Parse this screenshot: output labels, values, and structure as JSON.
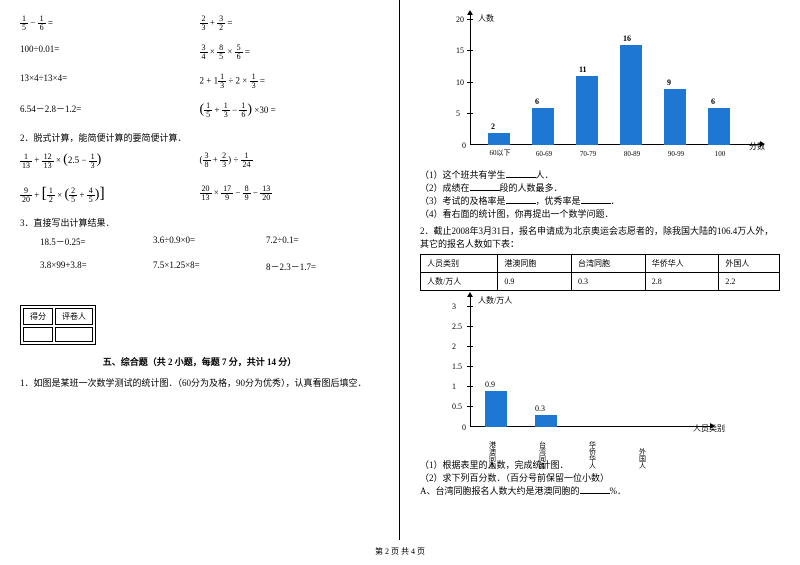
{
  "left": {
    "eq1a": "=",
    "eq1b": "=",
    "eq2a": "100÷0.01=",
    "eq3a": "13×4÷13×4=",
    "eq4a": "6.54－2.8－1.2=",
    "eq_paren": "×30 =",
    "item2": "2．脱式计算，能简便计算的要简便计算．",
    "item3": "3．直接写出计算结果．",
    "calc1": "18.5－0.25=",
    "calc2": "3.6÷0.9×0=",
    "calc3": "7.2÷0.1=",
    "calc4": "3.8×99+3.8=",
    "calc5": "7.5×1.25×8=",
    "calc6": "8－2.3－1.7=",
    "score1": "得分",
    "score2": "评卷人",
    "section5": "五、综合题（共 2 小题，每题 7 分，共计 14 分）",
    "q1": "1．如图是某班一次数学测试的统计图．（60分为及格，90分为优秀），认真看图后填空．"
  },
  "right": {
    "chart1": {
      "ylabel": "人数",
      "xlabel": "分数",
      "cats": [
        "60以下",
        "60-69",
        "70-79",
        "80-89",
        "90-99",
        "100"
      ],
      "vals": [
        2,
        6,
        11,
        16,
        9,
        6
      ],
      "yticks": [
        "5",
        "10",
        "15",
        "20"
      ],
      "bar_color": "#1f77d4"
    },
    "q1_1": "（1）这个班共有学生",
    "q1_1b": "人．",
    "q1_2": "（2）成绩在",
    "q1_2b": "段的人数最多．",
    "q1_3": "（3）考试的及格率是",
    "q1_3b": "，优秀率是",
    "q1_3c": "．",
    "q1_4": "（4）看右面的统计图，你再提出一个数学问题．",
    "q2": "2．截止2008年3月31日，报名申请成为北京奥运会志愿者的，除我国大陆的106.4万人外，其它的报名人数如下表：",
    "tbl": {
      "h1": "人员类别",
      "h2": "港澳同胞",
      "h3": "台湾同胞",
      "h4": "华侨华人",
      "h5": "外国人",
      "r1": "人数/万人",
      "v1": "0.9",
      "v2": "0.3",
      "v3": "2.8",
      "v4": "2.2"
    },
    "chart2": {
      "ylabel": "人数/万人",
      "xlabel": "人员类别",
      "cats": [
        "港澳同胞",
        "台湾同胞",
        "华侨华人",
        "外国人"
      ],
      "vals": [
        0.9,
        0.3,
        null,
        null
      ],
      "labels": [
        "0.9",
        "0.3"
      ],
      "yticks": [
        "0.5",
        "1",
        "1.5",
        "2",
        "2.5",
        "3"
      ]
    },
    "q2_1": "（1）根据表里的人数，完成统计图．",
    "q2_2": "（2）求下列百分数．（百分号前保留一位小数）",
    "q2_a": "A、台湾同胞报名人数大约是港澳同胞的",
    "q2_ab": "%．"
  },
  "footer": "第 2 页 共 4 页"
}
